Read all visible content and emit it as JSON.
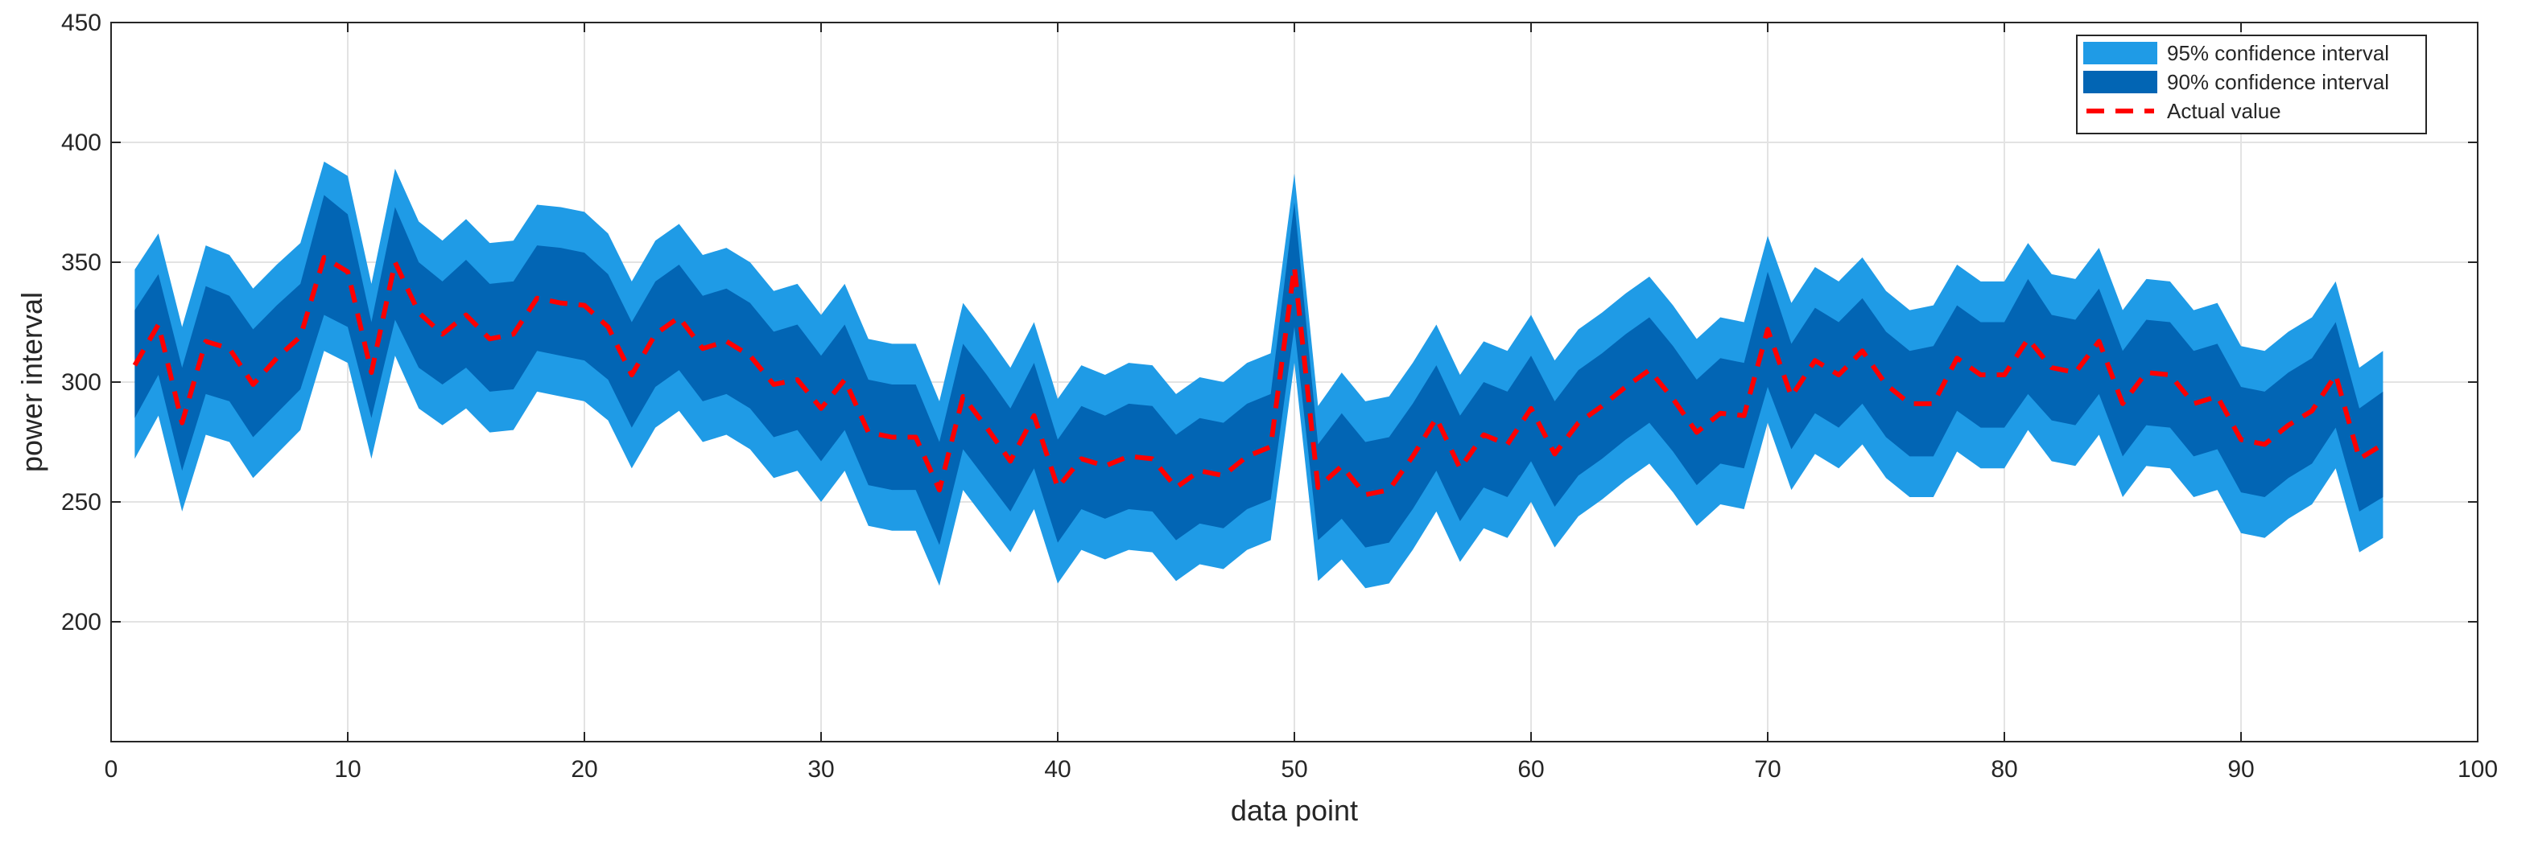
{
  "chart_data": {
    "type": "area",
    "xlabel": "data point",
    "ylabel": "power interval",
    "xlim": [
      0,
      100
    ],
    "ylim": [
      150,
      450
    ],
    "xticks": [
      0,
      10,
      20,
      30,
      40,
      50,
      60,
      70,
      80,
      90,
      100
    ],
    "yticks": [
      200,
      250,
      300,
      350,
      400,
      450
    ],
    "grid": true,
    "legend_position": "top-right",
    "x": [
      1,
      2,
      3,
      4,
      5,
      6,
      7,
      8,
      9,
      10,
      11,
      12,
      13,
      14,
      15,
      16,
      17,
      18,
      19,
      20,
      21,
      22,
      23,
      24,
      25,
      26,
      27,
      28,
      29,
      30,
      31,
      32,
      33,
      34,
      35,
      36,
      37,
      38,
      39,
      40,
      41,
      42,
      43,
      44,
      45,
      46,
      47,
      48,
      49,
      50,
      51,
      52,
      53,
      54,
      55,
      56,
      57,
      58,
      59,
      60,
      61,
      62,
      63,
      64,
      65,
      66,
      67,
      68,
      69,
      70,
      71,
      72,
      73,
      74,
      75,
      76,
      77,
      78,
      79,
      80,
      81,
      82,
      83,
      84,
      85,
      86,
      87,
      88,
      89,
      90,
      91,
      92,
      93,
      94,
      95,
      96
    ],
    "series": [
      {
        "name": "95% confidence interval",
        "color": "#1f9be6",
        "upper": [
          347,
          362,
          323,
          357,
          353,
          339,
          349,
          358,
          392,
          386,
          341,
          389,
          367,
          359,
          368,
          358,
          359,
          374,
          373,
          371,
          362,
          342,
          359,
          366,
          353,
          356,
          350,
          338,
          341,
          328,
          341,
          318,
          316,
          316,
          292,
          333,
          320,
          306,
          325,
          293,
          307,
          303,
          308,
          307,
          295,
          302,
          300,
          308,
          312,
          387,
          290,
          304,
          292,
          294,
          308,
          324,
          303,
          317,
          313,
          328,
          309,
          322,
          329,
          337,
          344,
          332,
          318,
          327,
          325,
          361,
          333,
          348,
          342,
          352,
          338,
          330,
          332,
          349,
          342,
          342,
          358,
          345,
          343,
          356,
          330,
          343,
          342,
          330,
          333,
          315,
          313,
          321,
          327,
          342,
          306,
          313
        ],
        "lower": [
          268,
          286,
          246,
          278,
          275,
          260,
          270,
          280,
          313,
          308,
          268,
          311,
          289,
          282,
          289,
          279,
          280,
          296,
          294,
          292,
          284,
          264,
          281,
          288,
          275,
          278,
          272,
          260,
          263,
          250,
          263,
          240,
          238,
          238,
          215,
          255,
          242,
          229,
          247,
          216,
          230,
          226,
          230,
          229,
          217,
          224,
          222,
          230,
          234,
          308,
          217,
          226,
          214,
          216,
          230,
          246,
          225,
          239,
          235,
          250,
          231,
          244,
          251,
          259,
          266,
          254,
          240,
          249,
          247,
          283,
          255,
          270,
          264,
          274,
          260,
          252,
          252,
          271,
          264,
          264,
          280,
          267,
          265,
          278,
          252,
          265,
          264,
          252,
          255,
          237,
          235,
          243,
          249,
          264,
          229,
          235
        ]
      },
      {
        "name": "90% confidence interval",
        "color": "#0265b4",
        "upper": [
          330,
          345,
          306,
          340,
          336,
          322,
          332,
          341,
          378,
          370,
          325,
          373,
          350,
          342,
          351,
          341,
          342,
          357,
          356,
          354,
          345,
          325,
          342,
          349,
          336,
          339,
          333,
          321,
          324,
          311,
          324,
          301,
          299,
          299,
          275,
          316,
          303,
          289,
          308,
          276,
          290,
          286,
          291,
          290,
          278,
          285,
          283,
          291,
          295,
          375,
          274,
          287,
          275,
          277,
          291,
          307,
          286,
          300,
          296,
          311,
          292,
          305,
          312,
          320,
          327,
          315,
          301,
          310,
          308,
          346,
          316,
          331,
          325,
          335,
          321,
          313,
          315,
          332,
          325,
          325,
          343,
          328,
          326,
          339,
          313,
          326,
          325,
          313,
          316,
          298,
          296,
          304,
          310,
          325,
          289,
          296
        ],
        "lower": [
          285,
          303,
          263,
          295,
          292,
          277,
          287,
          297,
          328,
          323,
          285,
          326,
          306,
          299,
          306,
          296,
          297,
          313,
          311,
          309,
          301,
          281,
          298,
          305,
          292,
          295,
          289,
          277,
          280,
          267,
          280,
          257,
          255,
          255,
          232,
          272,
          259,
          246,
          264,
          233,
          247,
          243,
          247,
          246,
          234,
          241,
          239,
          247,
          251,
          323,
          234,
          243,
          231,
          233,
          247,
          263,
          242,
          256,
          252,
          267,
          248,
          261,
          268,
          276,
          283,
          271,
          257,
          266,
          264,
          298,
          272,
          287,
          281,
          291,
          277,
          269,
          269,
          288,
          281,
          281,
          295,
          284,
          282,
          295,
          269,
          282,
          281,
          269,
          272,
          254,
          252,
          260,
          266,
          281,
          246,
          252
        ]
      },
      {
        "name": "Actual value",
        "color": "#ff0000",
        "values": [
          307,
          324,
          283,
          317,
          314,
          299,
          310,
          319,
          352,
          346,
          304,
          350,
          329,
          320,
          328,
          318,
          320,
          335,
          333,
          332,
          323,
          303,
          320,
          327,
          314,
          317,
          311,
          299,
          301,
          289,
          301,
          279,
          277,
          277,
          255,
          294,
          281,
          267,
          286,
          256,
          268,
          265,
          269,
          268,
          256,
          263,
          261,
          269,
          273,
          348,
          256,
          265,
          253,
          255,
          269,
          285,
          264,
          278,
          274,
          289,
          270,
          283,
          290,
          298,
          305,
          293,
          279,
          287,
          286,
          322,
          294,
          309,
          303,
          313,
          299,
          291,
          291,
          310,
          303,
          303,
          318,
          306,
          304,
          317,
          291,
          304,
          303,
          291,
          294,
          276,
          274,
          282,
          288,
          303,
          268,
          274
        ]
      }
    ]
  }
}
